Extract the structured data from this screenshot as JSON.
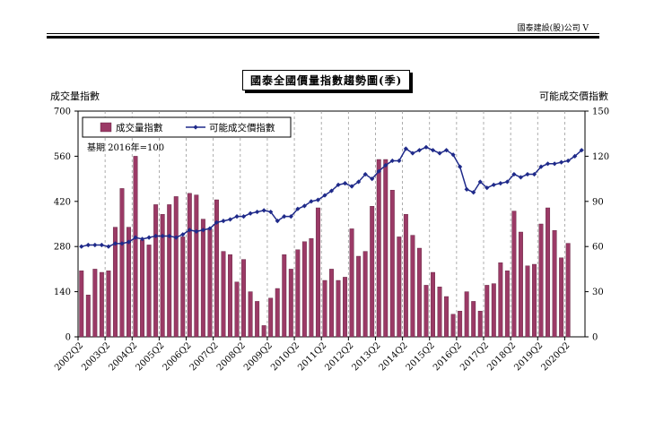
{
  "header": {
    "note": "國泰建設(股)公司 V"
  },
  "chart_data": {
    "type": "bar+line",
    "title": "國泰全國價量指數趨勢圖(季)",
    "ylabel_left": "成交量指數",
    "ylabel_right": "可能成交價指數",
    "annotation": "基期 2016年=100",
    "y_left_range": [
      0,
      700
    ],
    "y_left_ticks": [
      0,
      140,
      280,
      420,
      560,
      700
    ],
    "y_right_range": [
      0,
      150
    ],
    "y_right_ticks": [
      0,
      30,
      60,
      90,
      120,
      150
    ],
    "grid": "vertical dashed at each Q2",
    "legend_position": "top-left",
    "colors": {
      "bar": "#9b3a66",
      "line": "#1f2a8a"
    },
    "x_tick_labels": [
      "2002Q2",
      "2003Q2",
      "2004Q2",
      "2005Q2",
      "2006Q2",
      "2007Q2",
      "2008Q2",
      "2009Q2",
      "2010Q2",
      "2011Q2",
      "2012Q2",
      "2013Q2",
      "2014Q2",
      "2015Q2",
      "2016Q2",
      "2017Q2",
      "2018Q2",
      "2019Q2",
      "2020Q2"
    ],
    "series": [
      {
        "name": "成交量指數",
        "type": "bar",
        "axis": "left",
        "values": [
          205,
          130,
          210,
          200,
          205,
          340,
          460,
          340,
          560,
          300,
          285,
          410,
          380,
          410,
          435,
          310,
          445,
          440,
          365,
          335,
          425,
          265,
          255,
          170,
          240,
          140,
          110,
          35,
          120,
          150,
          255,
          210,
          270,
          295,
          305,
          400,
          175,
          210,
          175,
          185,
          335,
          250,
          265,
          405,
          550,
          550,
          455,
          310,
          380,
          315,
          275,
          160,
          200,
          155,
          125,
          70,
          80,
          140,
          110,
          80,
          160,
          165,
          230,
          205,
          390,
          325,
          220,
          225,
          350,
          400,
          330,
          245,
          290
        ],
        "x_start": "2002Q2"
      },
      {
        "name": "可能成交價指數",
        "type": "line",
        "axis": "right",
        "values": [
          60,
          61,
          61,
          61,
          60,
          62,
          62,
          63,
          66,
          65,
          66,
          67,
          67,
          67,
          66,
          68,
          71,
          70,
          71,
          72,
          76,
          77,
          78,
          80,
          80,
          82,
          83,
          84,
          83,
          77,
          80,
          80,
          85,
          87,
          90,
          91,
          94,
          97,
          101,
          102,
          100,
          103,
          108,
          105,
          110,
          114,
          117,
          117,
          125,
          122,
          124,
          126,
          124,
          122,
          124,
          121,
          113,
          98,
          96,
          103,
          99,
          101,
          102,
          103,
          108,
          106,
          108,
          108,
          113,
          115,
          115,
          116,
          117,
          120,
          124
        ],
        "x_start": "2002Q2"
      }
    ]
  }
}
